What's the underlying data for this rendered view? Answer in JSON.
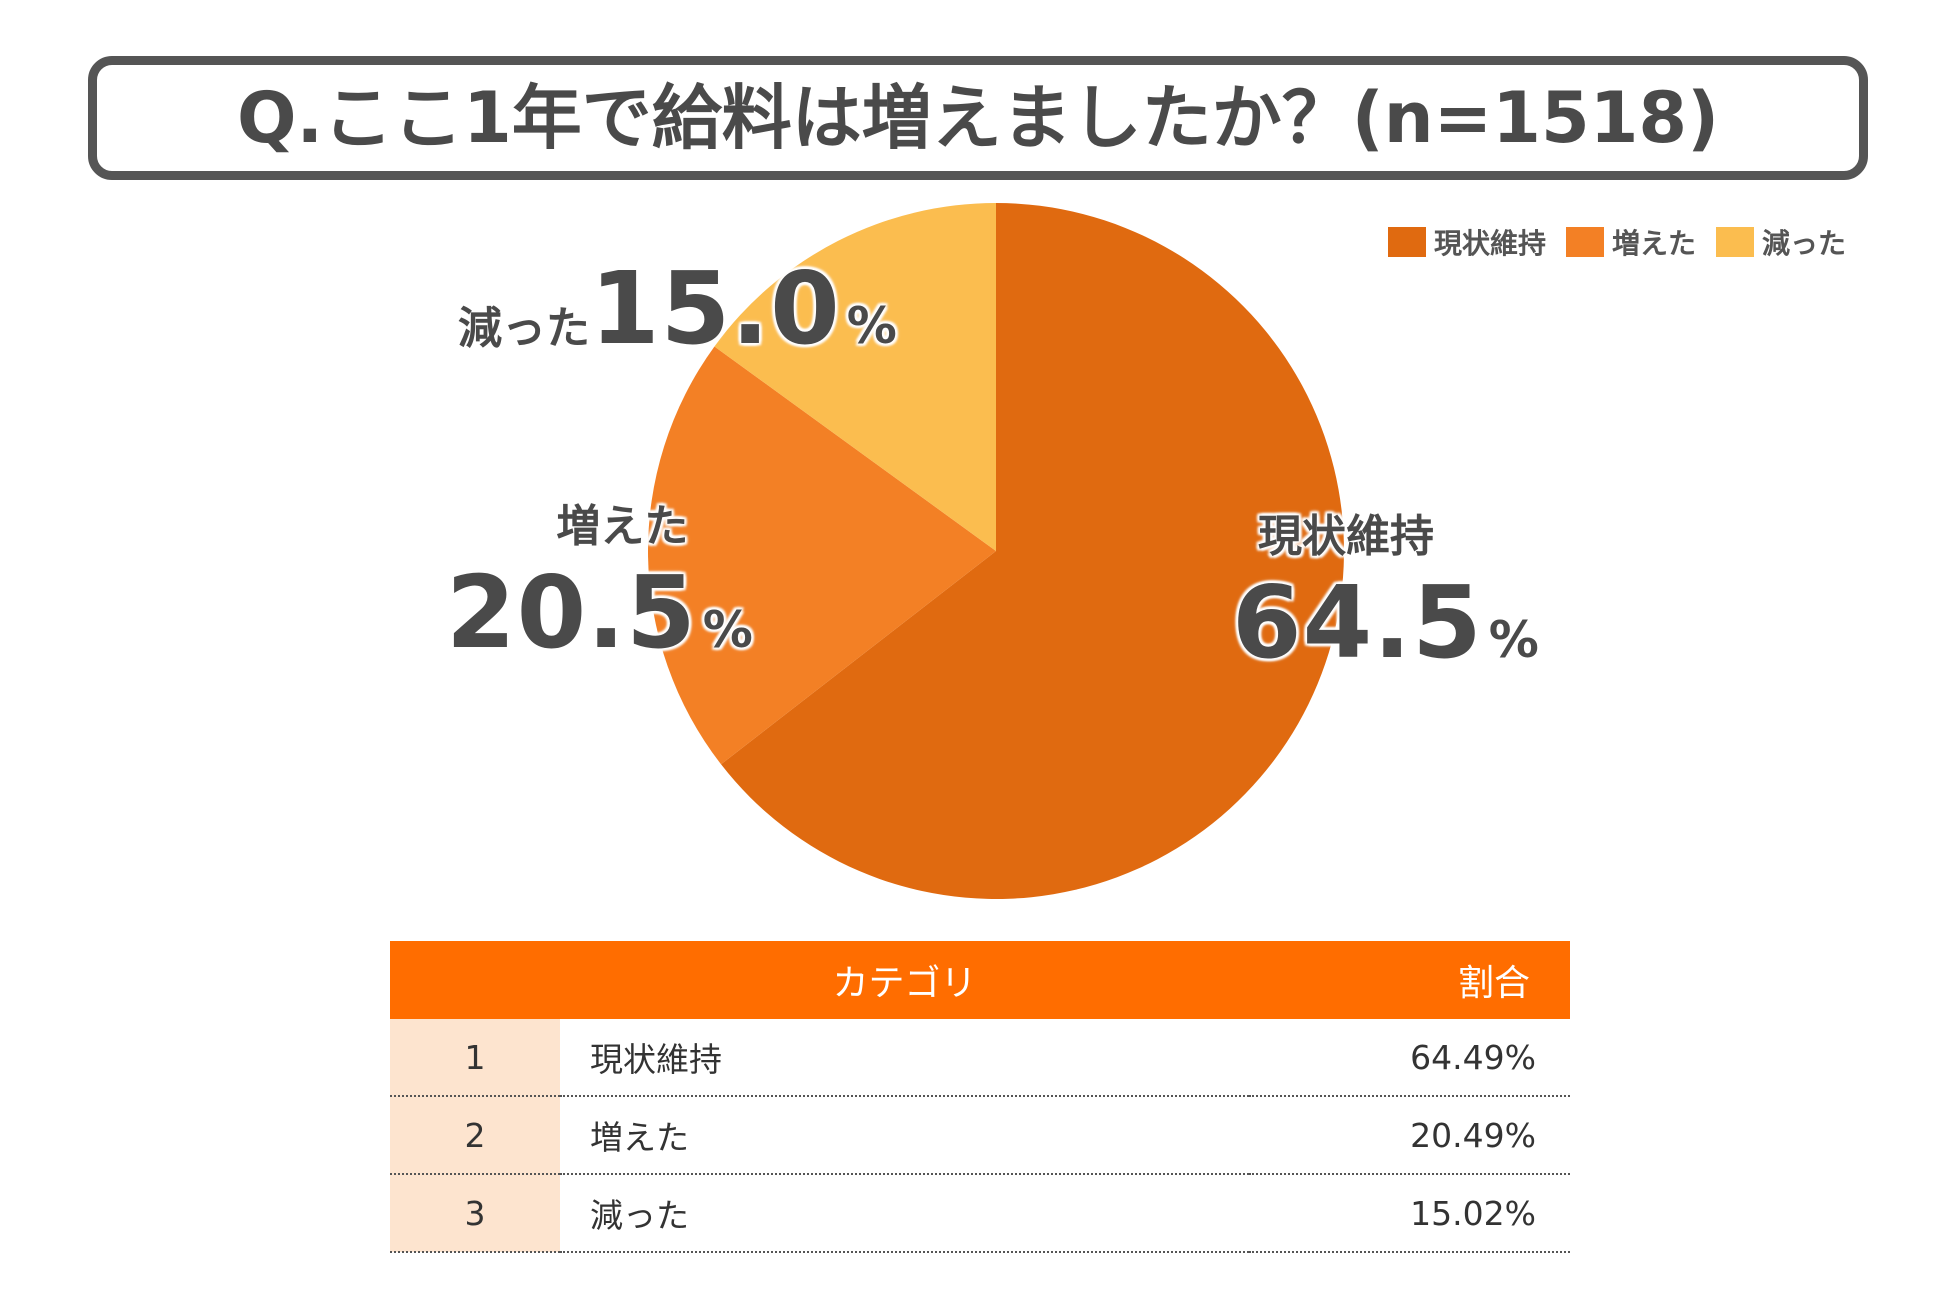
{
  "title": "Q.ここ1年で給料は増えましたか？(n=1518)",
  "chart_data": {
    "type": "pie",
    "title": "Q.ここ1年で給料は増えましたか？(n=1518)",
    "n": 1518,
    "slices": [
      {
        "name": "現状維持",
        "value": 64.5,
        "color": "#e06a10"
      },
      {
        "name": "増えた",
        "value": 20.5,
        "color": "#f38025"
      },
      {
        "name": "減った",
        "value": 15.0,
        "color": "#fbbd4f"
      }
    ],
    "legend": [
      "現状維持",
      "増えた",
      "減った"
    ],
    "legend_position": "top-right",
    "start_angle": "12 o'clock",
    "direction": "clockwise"
  },
  "labels": {
    "maintained": {
      "cat": "現状維持",
      "val": "64.5",
      "pct": "%"
    },
    "increased": {
      "cat": "増えた",
      "val": "20.5",
      "pct": "%"
    },
    "decreased": {
      "cat": "減った",
      "val": "15.0",
      "pct": "%"
    }
  },
  "table": {
    "headers": {
      "rank": "",
      "category": "カテゴリ",
      "ratio": "割合"
    },
    "rows": [
      {
        "rank": "1",
        "category": "現状維持",
        "ratio": "64.49%"
      },
      {
        "rank": "2",
        "category": "増えた",
        "ratio": "20.49%"
      },
      {
        "rank": "3",
        "category": "減った",
        "ratio": "15.02%"
      }
    ]
  }
}
